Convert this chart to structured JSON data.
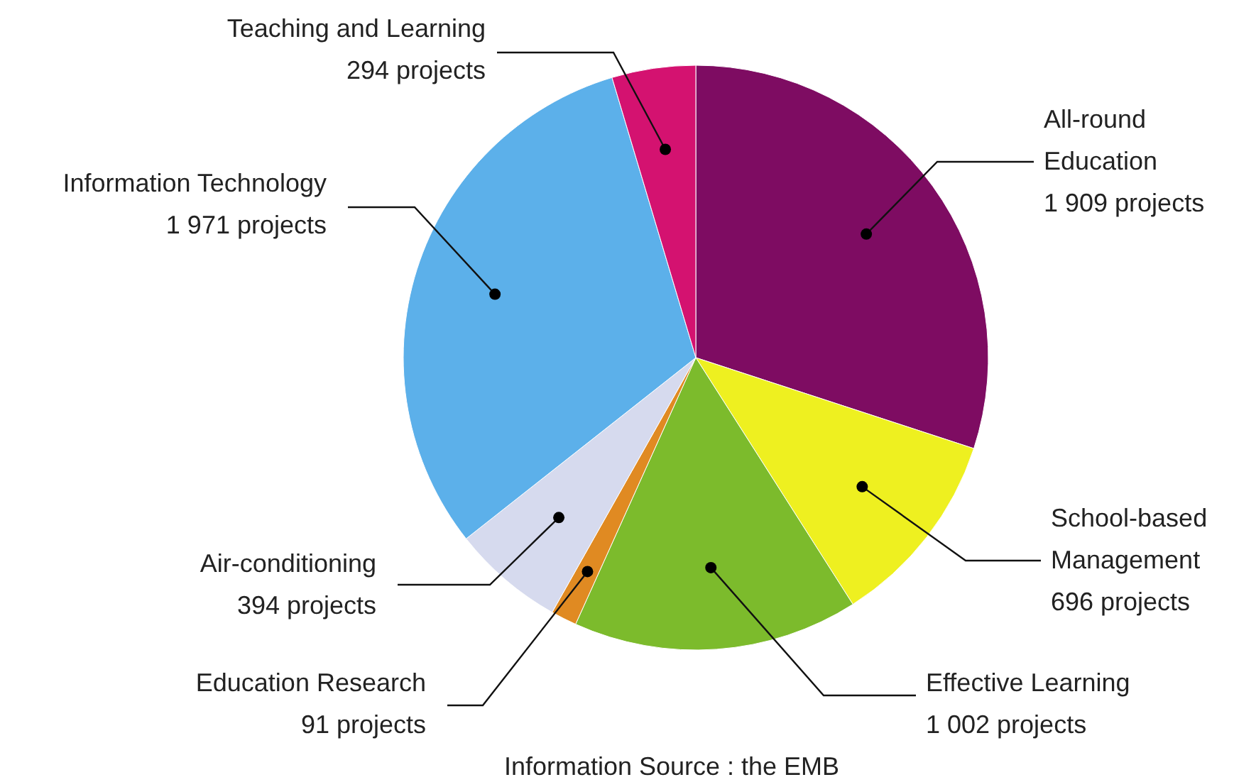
{
  "chart_data": {
    "type": "pie",
    "categories": [
      "All-round Education",
      "School-based Management",
      "Effective Learning",
      "Education Research",
      "Air-conditioning",
      "Information Technology",
      "Teaching and Learning"
    ],
    "values": [
      1909,
      696,
      1002,
      91,
      394,
      1971,
      294
    ],
    "value_labels": [
      "1 909 projects",
      "696 projects",
      "1 002 projects",
      "91 projects",
      "394 projects",
      "1 971 projects",
      "294 projects"
    ],
    "colors": [
      "#7e0c62",
      "#eef020",
      "#7cbb2c",
      "#e08a22",
      "#d6daee",
      "#5cb0ea",
      "#d41270"
    ],
    "annotations": [
      "Information Source : the EMB"
    ]
  }
}
